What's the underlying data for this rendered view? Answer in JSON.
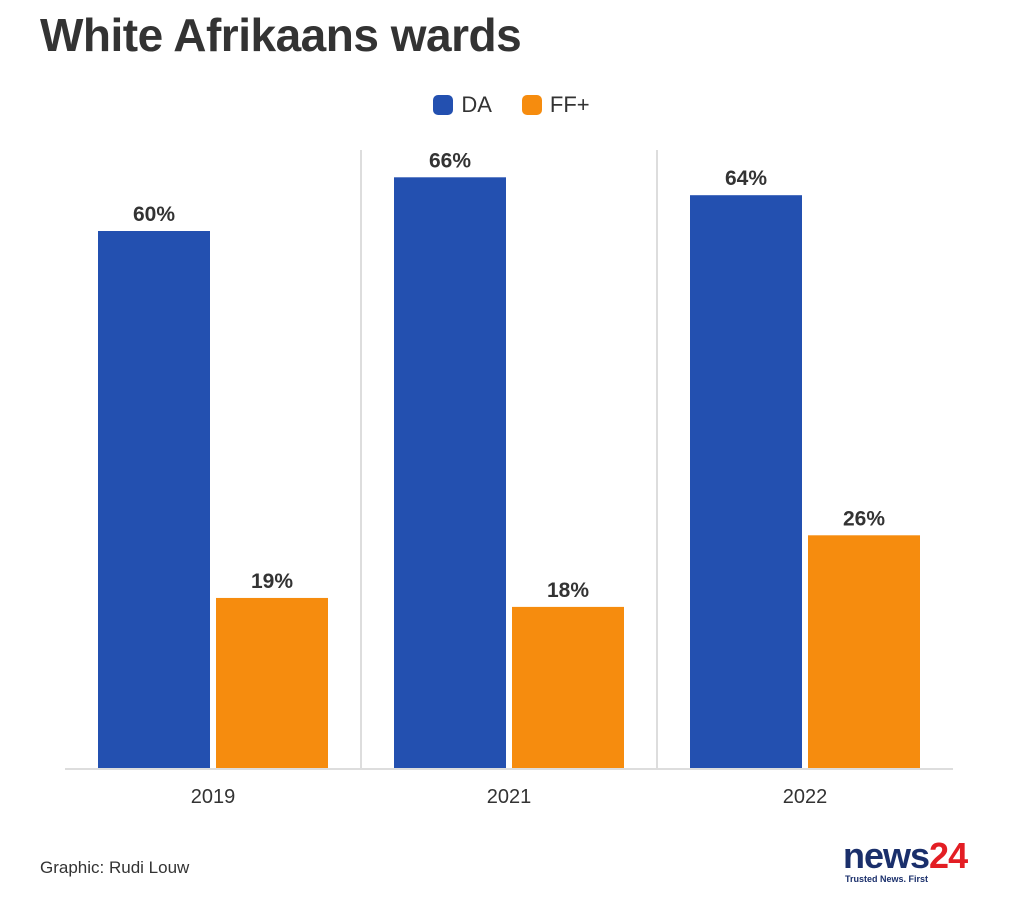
{
  "title": "White Afrikaans wards",
  "credit": "Graphic: Rudi Louw",
  "logo": {
    "news": "news",
    "num": "24",
    "tagline": "Trusted News. First"
  },
  "colors": {
    "DA": "#2350b0",
    "FF+": "#f68c0e",
    "grid": "#dddddd",
    "text": "#333333"
  },
  "chart_data": {
    "type": "bar",
    "title": "White Afrikaans wards",
    "xlabel": "",
    "ylabel": "",
    "categories": [
      "2019",
      "2021",
      "2022"
    ],
    "series": [
      {
        "name": "DA",
        "values": [
          60,
          66,
          64
        ],
        "labels": [
          "60%",
          "66%",
          "64%"
        ]
      },
      {
        "name": "FF+",
        "values": [
          19,
          18,
          26
        ],
        "labels": [
          "19%",
          "18%",
          "26%"
        ]
      }
    ],
    "ylim": [
      0,
      75
    ],
    "legend": "top-center",
    "grid": false
  }
}
